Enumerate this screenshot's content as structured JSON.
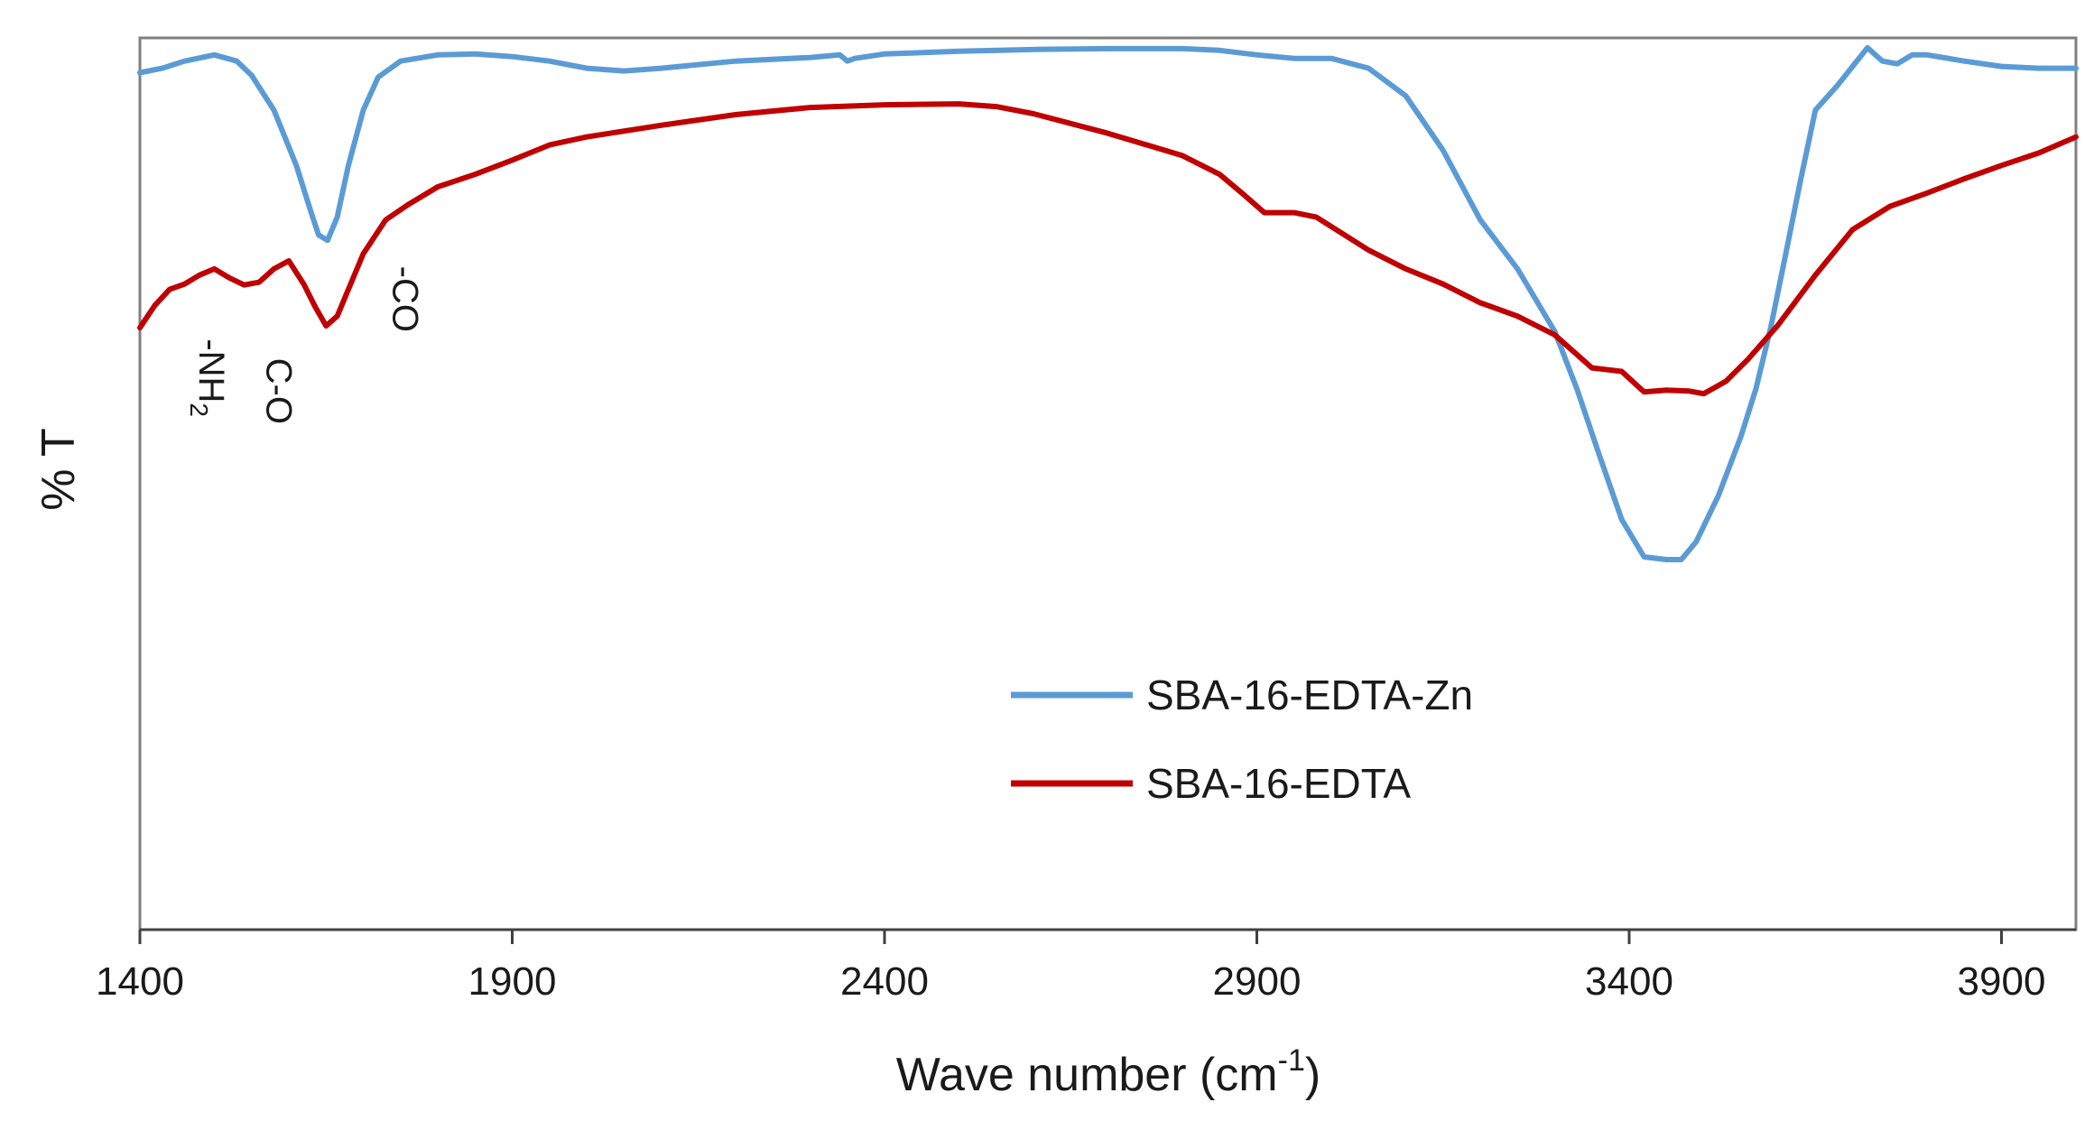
{
  "chart_data": {
    "type": "line",
    "xlabel": "Wave number (cm",
    "xlabel_sup": "-1",
    "xlabel_end": ")",
    "ylabel": "% T",
    "xlim": [
      1400,
      4000
    ],
    "ylim": [
      0,
      100
    ],
    "xticks": [
      1400,
      1900,
      2400,
      2900,
      3400,
      3900
    ],
    "grid": false,
    "legend_position": "center-right",
    "series": [
      {
        "name": "SBA-16-EDTA-Zn",
        "color": "#5B9BD5",
        "points": [
          [
            1400,
            96.1
          ],
          [
            1430,
            96.6
          ],
          [
            1460,
            97.4
          ],
          [
            1500,
            98.1
          ],
          [
            1530,
            97.4
          ],
          [
            1550,
            95.8
          ],
          [
            1580,
            91.9
          ],
          [
            1610,
            85.7
          ],
          [
            1630,
            80.4
          ],
          [
            1640,
            77.9
          ],
          [
            1652,
            77.3
          ],
          [
            1665,
            79.9
          ],
          [
            1680,
            85.7
          ],
          [
            1700,
            91.9
          ],
          [
            1720,
            95.6
          ],
          [
            1750,
            97.4
          ],
          [
            1800,
            98.1
          ],
          [
            1850,
            98.2
          ],
          [
            1900,
            97.9
          ],
          [
            1950,
            97.4
          ],
          [
            2000,
            96.6
          ],
          [
            2050,
            96.3
          ],
          [
            2100,
            96.6
          ],
          [
            2200,
            97.4
          ],
          [
            2300,
            97.8
          ],
          [
            2340,
            98.1
          ],
          [
            2350,
            97.4
          ],
          [
            2360,
            97.7
          ],
          [
            2400,
            98.2
          ],
          [
            2500,
            98.5
          ],
          [
            2600,
            98.7
          ],
          [
            2700,
            98.8
          ],
          [
            2800,
            98.8
          ],
          [
            2850,
            98.6
          ],
          [
            2900,
            98.1
          ],
          [
            2950,
            97.7
          ],
          [
            3000,
            97.7
          ],
          [
            3050,
            96.6
          ],
          [
            3100,
            93.5
          ],
          [
            3150,
            87.4
          ],
          [
            3200,
            79.6
          ],
          [
            3250,
            74.1
          ],
          [
            3300,
            67.1
          ],
          [
            3330,
            60.6
          ],
          [
            3360,
            53.2
          ],
          [
            3390,
            46.0
          ],
          [
            3420,
            41.8
          ],
          [
            3450,
            41.5
          ],
          [
            3470,
            41.5
          ],
          [
            3490,
            43.5
          ],
          [
            3520,
            48.7
          ],
          [
            3550,
            55.3
          ],
          [
            3570,
            60.6
          ],
          [
            3590,
            67.5
          ],
          [
            3610,
            75.7
          ],
          [
            3630,
            84.0
          ],
          [
            3650,
            91.9
          ],
          [
            3680,
            94.7
          ],
          [
            3700,
            96.8
          ],
          [
            3720,
            98.9
          ],
          [
            3740,
            97.4
          ],
          [
            3760,
            97.1
          ],
          [
            3780,
            98.1
          ],
          [
            3800,
            98.1
          ],
          [
            3850,
            97.4
          ],
          [
            3900,
            96.8
          ],
          [
            3950,
            96.6
          ],
          [
            4000,
            96.6
          ]
        ]
      },
      {
        "name": "SBA-16-EDTA",
        "color": "#C00000",
        "points": [
          [
            1400,
            67.5
          ],
          [
            1420,
            70.0
          ],
          [
            1440,
            71.8
          ],
          [
            1460,
            72.4
          ],
          [
            1480,
            73.4
          ],
          [
            1500,
            74.1
          ],
          [
            1520,
            73.1
          ],
          [
            1540,
            72.3
          ],
          [
            1560,
            72.6
          ],
          [
            1580,
            74.1
          ],
          [
            1600,
            75.0
          ],
          [
            1620,
            72.4
          ],
          [
            1635,
            69.9
          ],
          [
            1650,
            67.7
          ],
          [
            1665,
            68.8
          ],
          [
            1680,
            71.8
          ],
          [
            1700,
            75.8
          ],
          [
            1730,
            79.6
          ],
          [
            1760,
            81.3
          ],
          [
            1800,
            83.3
          ],
          [
            1850,
            84.7
          ],
          [
            1900,
            86.3
          ],
          [
            1950,
            88.0
          ],
          [
            2000,
            88.9
          ],
          [
            2100,
            90.2
          ],
          [
            2200,
            91.4
          ],
          [
            2300,
            92.2
          ],
          [
            2400,
            92.5
          ],
          [
            2500,
            92.6
          ],
          [
            2550,
            92.3
          ],
          [
            2600,
            91.5
          ],
          [
            2700,
            89.3
          ],
          [
            2800,
            86.8
          ],
          [
            2850,
            84.7
          ],
          [
            2880,
            82.6
          ],
          [
            2910,
            80.4
          ],
          [
            2950,
            80.4
          ],
          [
            2980,
            79.9
          ],
          [
            3050,
            76.2
          ],
          [
            3100,
            74.1
          ],
          [
            3150,
            72.4
          ],
          [
            3200,
            70.3
          ],
          [
            3250,
            68.8
          ],
          [
            3300,
            66.7
          ],
          [
            3350,
            63.0
          ],
          [
            3390,
            62.6
          ],
          [
            3420,
            60.3
          ],
          [
            3450,
            60.5
          ],
          [
            3480,
            60.4
          ],
          [
            3500,
            60.1
          ],
          [
            3530,
            61.5
          ],
          [
            3560,
            64.0
          ],
          [
            3600,
            67.8
          ],
          [
            3650,
            73.4
          ],
          [
            3700,
            78.5
          ],
          [
            3750,
            81.1
          ],
          [
            3800,
            82.6
          ],
          [
            3850,
            84.2
          ],
          [
            3900,
            85.7
          ],
          [
            3950,
            87.1
          ],
          [
            4000,
            88.9
          ]
        ]
      }
    ],
    "annotations": [
      {
        "text": "-NH",
        "sub": "2",
        "x": 1480
      },
      {
        "text": "C-O",
        "x": 1570
      },
      {
        "text": "-CO",
        "x": 1740
      }
    ]
  }
}
